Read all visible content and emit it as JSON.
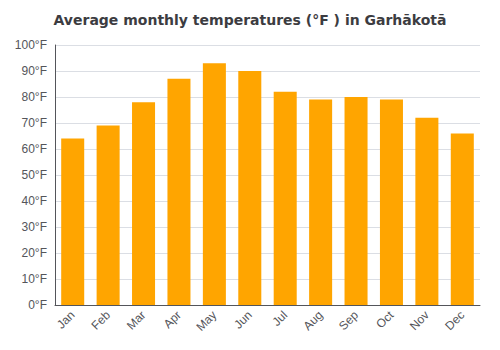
{
  "chart_data": {
    "type": "bar",
    "title": "Average monthly temperatures (°F ) in Garhākotā",
    "categories": [
      "Jan",
      "Feb",
      "Mar",
      "Apr",
      "May",
      "Jun",
      "Jul",
      "Aug",
      "Sep",
      "Oct",
      "Nov",
      "Dec"
    ],
    "values": [
      64,
      69,
      78,
      87,
      93,
      90,
      82,
      79,
      80,
      79,
      72,
      66
    ],
    "color": "#FFA500",
    "ylim": [
      0,
      100
    ],
    "yticks": [
      {
        "value": 0,
        "label": "0°F"
      },
      {
        "value": 10,
        "label": "10°F"
      },
      {
        "value": 20,
        "label": "20°F"
      },
      {
        "value": 30,
        "label": "30°F"
      },
      {
        "value": 40,
        "label": "40°F"
      },
      {
        "value": 50,
        "label": "50°F"
      },
      {
        "value": 60,
        "label": "60°F"
      },
      {
        "value": 70,
        "label": "70°F"
      },
      {
        "value": 80,
        "label": "80°F"
      },
      {
        "value": 90,
        "label": "90°F"
      },
      {
        "value": 100,
        "label": "100°F"
      }
    ],
    "grid": true
  }
}
